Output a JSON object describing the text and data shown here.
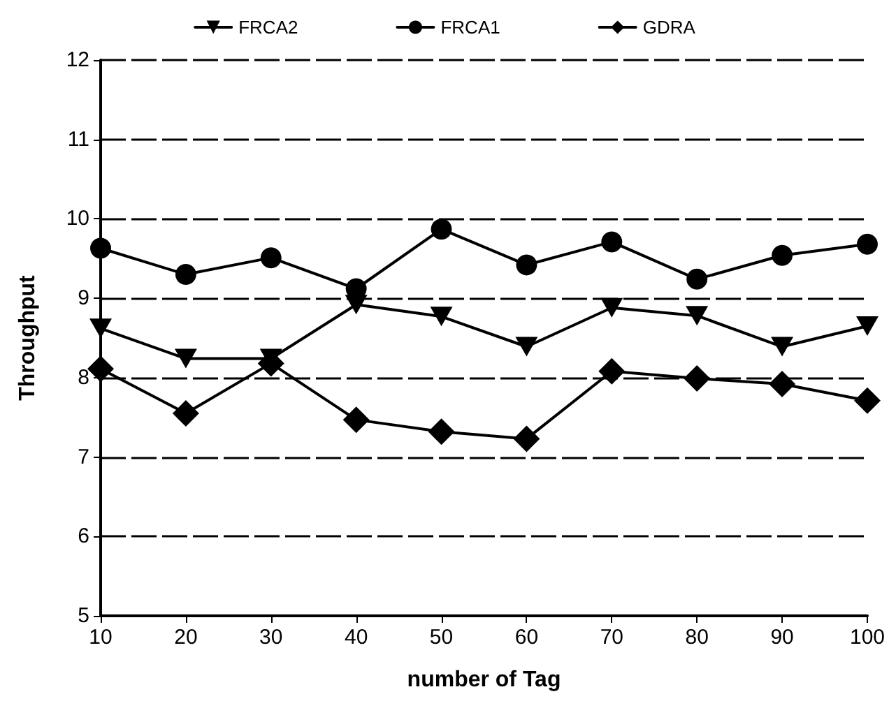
{
  "chart_data": {
    "type": "line",
    "xlabel": "number of Tag",
    "ylabel": "Throughput",
    "x": [
      10,
      20,
      30,
      40,
      50,
      60,
      70,
      80,
      90,
      100
    ],
    "series": [
      {
        "name": "FRCA2",
        "color": "#000000",
        "marker": "triangle",
        "values": [
          8.62,
          8.24,
          8.24,
          8.92,
          8.77,
          8.39,
          8.88,
          8.78,
          8.39,
          8.65
        ]
      },
      {
        "name": "FRCA1",
        "color": "#000000",
        "marker": "circle",
        "values": [
          9.63,
          9.3,
          9.51,
          9.12,
          9.87,
          9.42,
          9.71,
          9.24,
          9.54,
          9.68
        ]
      },
      {
        "name": "GDRA",
        "color": "#000000",
        "marker": "diamond",
        "values": [
          8.11,
          7.55,
          8.18,
          7.47,
          7.32,
          7.23,
          8.08,
          7.99,
          7.92,
          7.71
        ]
      }
    ],
    "xlim": [
      10,
      100
    ],
    "xticks": [
      10,
      20,
      30,
      40,
      50,
      60,
      70,
      80,
      90,
      100
    ],
    "ylim": [
      5,
      12
    ],
    "yticks": [
      5,
      6,
      7,
      8,
      9,
      10,
      11,
      12
    ],
    "grid": "y",
    "legend": "top",
    "line_style": "solid"
  }
}
